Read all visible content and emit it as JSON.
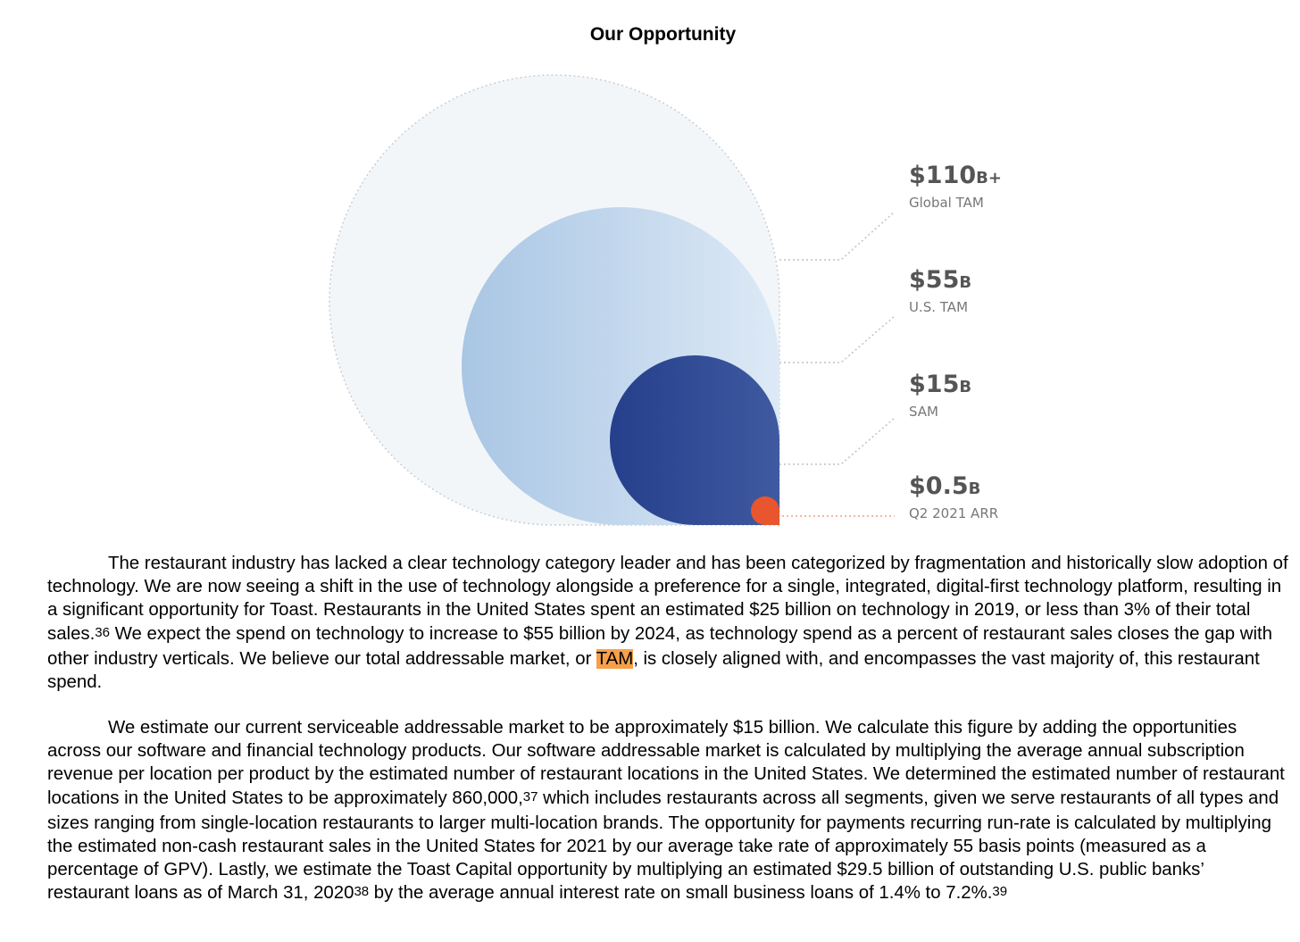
{
  "title": "Our Opportunity",
  "figure": {
    "colors": {
      "global_tam": "#f2f5f8",
      "us_tam": "#b3cde8",
      "sam": "#2b4590",
      "arr": "#e8552e"
    },
    "levels": [
      {
        "value": "$110",
        "unit": "B+",
        "desc": "Global TAM"
      },
      {
        "value": "$55",
        "unit": "B",
        "desc": "U.S. TAM"
      },
      {
        "value": "$15",
        "unit": "B",
        "desc": "SAM"
      },
      {
        "value": "$0.5",
        "unit": "B",
        "desc": "Q2 2021 ARR"
      }
    ]
  },
  "paragraph1": {
    "part1": "The restaurant industry has lacked a clear technology category leader and has been categorized by fragmentation and historically slow adoption of technology. We are now seeing a shift in the use of technology alongside a preference for a single, integrated, digital-first technology platform, resulting in a significant opportunity for Toast. Restaurants in the United States spent an estimated $25 billion on technology in 2019, or less than 3% of their total sales.",
    "fn1": "36",
    "part2": " We expect the spend on technology to increase to $55 billion by 2024, as technology spend as a percent of restaurant sales closes the gap with other industry verticals. We believe our total addressable market, or ",
    "highlight": "TAM",
    "part3": ", is closely aligned with, and encompasses the vast majority of, this restaurant spend."
  },
  "paragraph2": {
    "part1": "We estimate our current serviceable addressable market to be approximately $15 billion. We calculate this figure by adding the opportunities across our software and financial technology products. Our software addressable market is calculated by multiplying the average annual subscription revenue per location per product by the estimated number of restaurant locations in the United States. We determined the estimated number of restaurant locations in the United States to be approximately 860,000,",
    "fn1": "37",
    "part2": " which includes restaurants across all segments, given we serve restaurants of all types and sizes ranging from single-location restaurants to larger multi-location brands. The opportunity for payments recurring run-rate is calculated by multiplying the estimated non-cash restaurant sales in the United States for 2021 by our average take rate of approximately 55 basis points (measured as a percentage of GPV). Lastly, we estimate the Toast Capital opportunity by multiplying an estimated $29.5 billion of outstanding U.S. public banks’ restaurant loans as of March 31, 2020",
    "fn2": "38",
    "part3": " by the average annual interest rate on small business loans of 1.4% to 7.2%.",
    "fn3": "39"
  }
}
